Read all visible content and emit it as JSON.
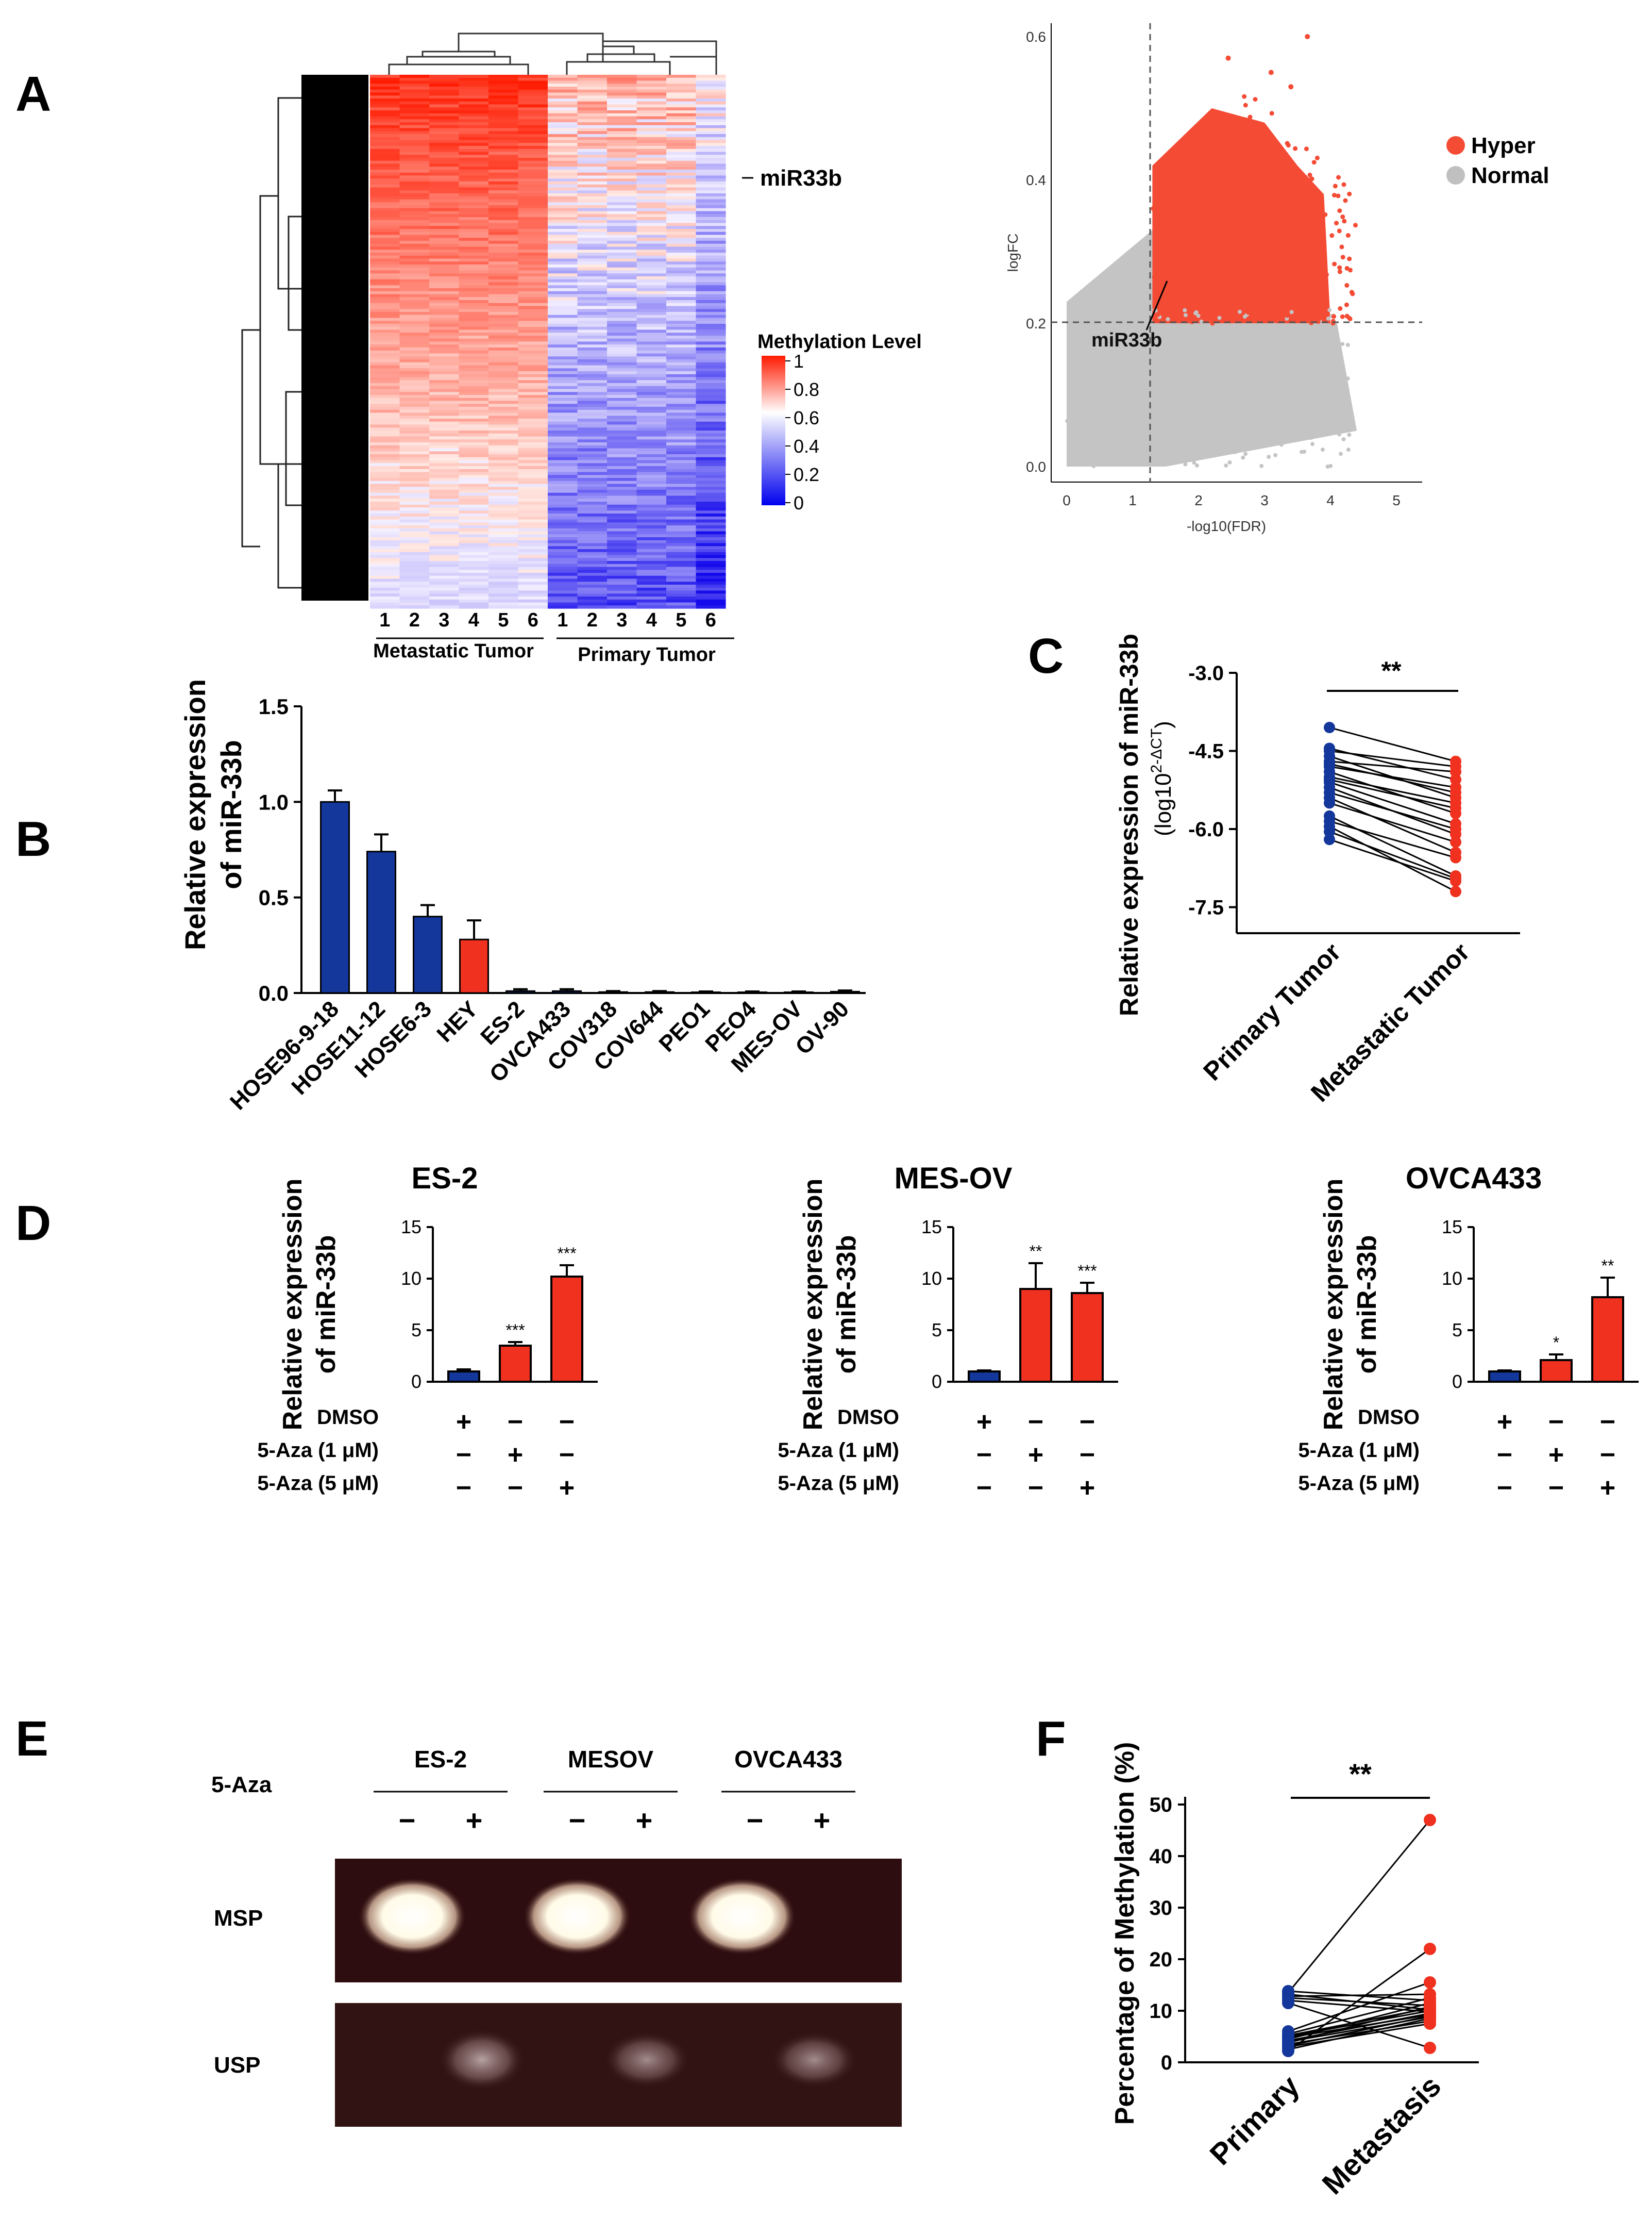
{
  "panels": {
    "A": {
      "letter": "A",
      "heatmap": {
        "label_mir": "miR33b",
        "metastatic_label": "Metastatic Tumor",
        "primary_label": "Primary Tumor",
        "column_numbers": [
          "1",
          "2",
          "3",
          "4",
          "5",
          "6"
        ],
        "legend_title": "Methylation Level",
        "legend_ticks": [
          "1",
          "0.8",
          "0.6",
          "0.4",
          "0.2",
          "0"
        ],
        "colors": {
          "high": "#ff1a00",
          "mid": "#ffffff",
          "low": "#0000ee"
        }
      },
      "volcano": {
        "xlabel": "-log10(FDR)",
        "ylabel": "logFC",
        "xticks": [
          "0",
          "1",
          "2",
          "3",
          "4",
          "5"
        ],
        "yticks": [
          "0.0",
          "0.2",
          "0.4",
          "0.6"
        ],
        "annotation": "miR33b",
        "legend": [
          {
            "label": "Hyper",
            "color": "#f44b35"
          },
          {
            "label": "Normal",
            "color": "#c0c0c0"
          }
        ],
        "thresholds": {
          "x": 1.3,
          "y": 0.2
        }
      }
    },
    "B": {
      "letter": "B",
      "ylabel_line1": "Relative expression",
      "ylabel_line2": "of miR-33b",
      "yticks": [
        "0.0",
        "0.5",
        "1.0",
        "1.5"
      ]
    },
    "C": {
      "letter": "C",
      "ylabel_line1": "Relative expression of miR-33b",
      "ylabel_line2": "(log10",
      "ylabel_sup": "2-ΔCT",
      "ylabel_close": ")",
      "yticks": [
        "-3.0",
        "-4.5",
        "-6.0",
        "-7.5"
      ],
      "xticks": [
        "Primary Tumor",
        "Metastatic Tumor"
      ],
      "sig": "**"
    },
    "D": {
      "letter": "D",
      "ylabel_line1": "Relative expression",
      "ylabel_line2": "of miR-33b",
      "yticks": [
        "0",
        "5",
        "10",
        "15"
      ],
      "treatments": [
        "DMSO",
        "5-Aza (1 μM)",
        "5-Aza (5 μM)"
      ],
      "matrix": [
        [
          "+",
          "−",
          "−"
        ],
        [
          "−",
          "+",
          "−"
        ],
        [
          "−",
          "−",
          "+"
        ]
      ]
    },
    "E": {
      "letter": "E",
      "treatment_label": "5-Aza",
      "groups": [
        "ES-2",
        "MESOV",
        "OVCA433"
      ],
      "signs": [
        "−",
        "+"
      ],
      "rows": [
        "MSP",
        "USP"
      ]
    },
    "F": {
      "letter": "F",
      "ylabel": "Percentage of Methylation (%)",
      "yticks": [
        "0",
        "10",
        "20",
        "30",
        "40",
        "50"
      ],
      "xticks": [
        "Primary",
        "Metastasis"
      ],
      "sig": "**"
    }
  },
  "chart_data": [
    {
      "type": "bar",
      "panel": "B",
      "title": "",
      "xlabel": "",
      "ylabel": "Relative expression of miR-33b",
      "ylim": [
        0,
        1.5
      ],
      "categories": [
        "HOSE96-9-18",
        "HOSE11-12",
        "HOSE6-3",
        "HEY",
        "ES-2",
        "OVCA433",
        "COV318",
        "COV644",
        "PEO1",
        "PEO4",
        "MES-OV",
        "OV-90"
      ],
      "values": [
        1.0,
        0.74,
        0.4,
        0.28,
        0.01,
        0.01,
        0.005,
        0.005,
        0.004,
        0.004,
        0.004,
        0.007
      ],
      "errors": [
        0.06,
        0.09,
        0.06,
        0.1,
        0.01,
        0.01,
        0.005,
        0.005,
        0.004,
        0.004,
        0.004,
        0.006
      ],
      "bar_colors": [
        "#13379a",
        "#13379a",
        "#13379a",
        "#f0311f",
        "#13379a",
        "#13379a",
        "#13379a",
        "#13379a",
        "#13379a",
        "#13379a",
        "#13379a",
        "#13379a"
      ]
    },
    {
      "type": "bar",
      "panel": "D",
      "title": "ES-2",
      "ylabel": "Relative expression of miR-33b",
      "ylim": [
        0,
        15
      ],
      "categories": [
        "DMSO",
        "5-Aza (1 μM)",
        "5-Aza (5 μM)"
      ],
      "values": [
        1.0,
        3.5,
        10.2
      ],
      "errors": [
        0.2,
        0.35,
        1.1
      ],
      "sig": [
        "",
        "***",
        "***"
      ],
      "bar_colors": [
        "#13379a",
        "#f0311f",
        "#f0311f"
      ]
    },
    {
      "type": "bar",
      "panel": "D",
      "title": "MES-OV",
      "ylabel": "Relative expression of miR-33b",
      "ylim": [
        0,
        15
      ],
      "categories": [
        "DMSO",
        "5-Aza (1 μM)",
        "5-Aza (5 μM)"
      ],
      "values": [
        1.0,
        9.0,
        8.6
      ],
      "errors": [
        0.1,
        2.5,
        1.0
      ],
      "sig": [
        "",
        "**",
        "***"
      ],
      "bar_colors": [
        "#13379a",
        "#f0311f",
        "#f0311f"
      ]
    },
    {
      "type": "bar",
      "panel": "D",
      "title": "OVCA433",
      "ylabel": "Relative expression of miR-33b",
      "ylim": [
        0,
        15
      ],
      "categories": [
        "DMSO",
        "5-Aza (1 μM)",
        "5-Aza (5 μM)"
      ],
      "values": [
        1.0,
        2.1,
        8.2
      ],
      "errors": [
        0.1,
        0.55,
        1.9
      ],
      "sig": [
        "",
        "*",
        "**"
      ],
      "bar_colors": [
        "#13379a",
        "#f0311f",
        "#f0311f"
      ]
    },
    {
      "type": "scatter",
      "panel": "C",
      "ylabel": "Relative expression of miR-33b (log10 2-ΔCT)",
      "ylim": [
        -8.0,
        -3.0
      ],
      "categories": [
        "Primary Tumor",
        "Metastatic Tumor"
      ],
      "series": [
        {
          "name": "Primary Tumor",
          "color": "#13379a",
          "values": [
            -4.05,
            -4.45,
            -4.5,
            -4.6,
            -4.7,
            -4.75,
            -4.8,
            -4.9,
            -5.0,
            -5.05,
            -5.1,
            -5.2,
            -5.3,
            -5.4,
            -5.5,
            -5.75,
            -5.85,
            -5.95,
            -6.05,
            -6.2
          ]
        },
        {
          "name": "Metastatic Tumor",
          "color": "#f0311f",
          "values": [
            -4.7,
            -4.8,
            -4.9,
            -5.05,
            -5.2,
            -5.3,
            -5.4,
            -5.5,
            -5.6,
            -5.7,
            -5.9,
            -6.0,
            -6.1,
            -6.25,
            -6.45,
            -6.55,
            -6.9,
            -6.95,
            -7.0,
            -7.2
          ]
        }
      ],
      "paired": true
    },
    {
      "type": "scatter",
      "panel": "F",
      "ylabel": "Percentage of Methylation (%)",
      "ylim": [
        0,
        50
      ],
      "categories": [
        "Primary",
        "Metastasis"
      ],
      "series": [
        {
          "name": "Primary",
          "color": "#13379a",
          "values": [
            13.8,
            13.5,
            13.2,
            12.8,
            12.5,
            12.0,
            11.5,
            6.0,
            5.5,
            5.2,
            5.0,
            4.8,
            4.5,
            4.2,
            4.0,
            3.8,
            3.5,
            3.2,
            3.0,
            2.5,
            2.2
          ]
        },
        {
          "name": "Metastasis",
          "color": "#f0311f",
          "values": [
            47.0,
            22.0,
            15.5,
            13.2,
            12.5,
            12.0,
            11.5,
            11.0,
            10.8,
            10.5,
            10.2,
            10.0,
            9.8,
            9.5,
            9.2,
            9.0,
            8.8,
            8.5,
            8.0,
            7.5,
            2.8
          ]
        }
      ],
      "paired": true
    }
  ]
}
